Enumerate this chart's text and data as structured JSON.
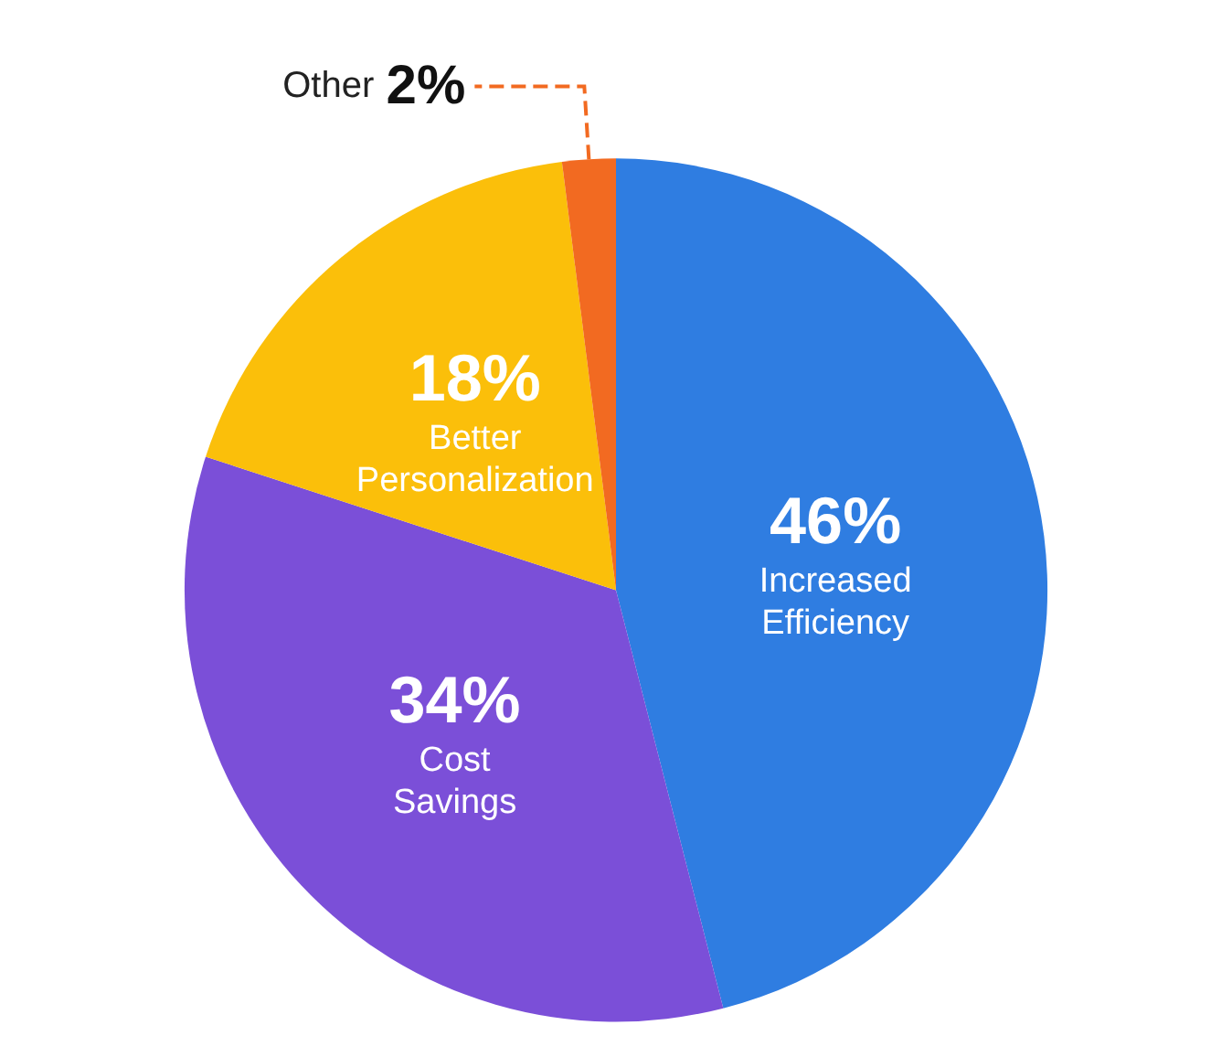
{
  "chart_data": {
    "type": "pie",
    "categories": [
      "Increased Efficiency",
      "Cost Savings",
      "Better Personalization",
      "Other"
    ],
    "values": [
      46,
      34,
      18,
      2
    ],
    "colors": [
      "#2f7de1",
      "#7b4fd8",
      "#fbbf0a",
      "#f26a21"
    ],
    "value_labels": [
      "46%",
      "34%",
      "18%",
      "2%"
    ],
    "legend": false
  }
}
